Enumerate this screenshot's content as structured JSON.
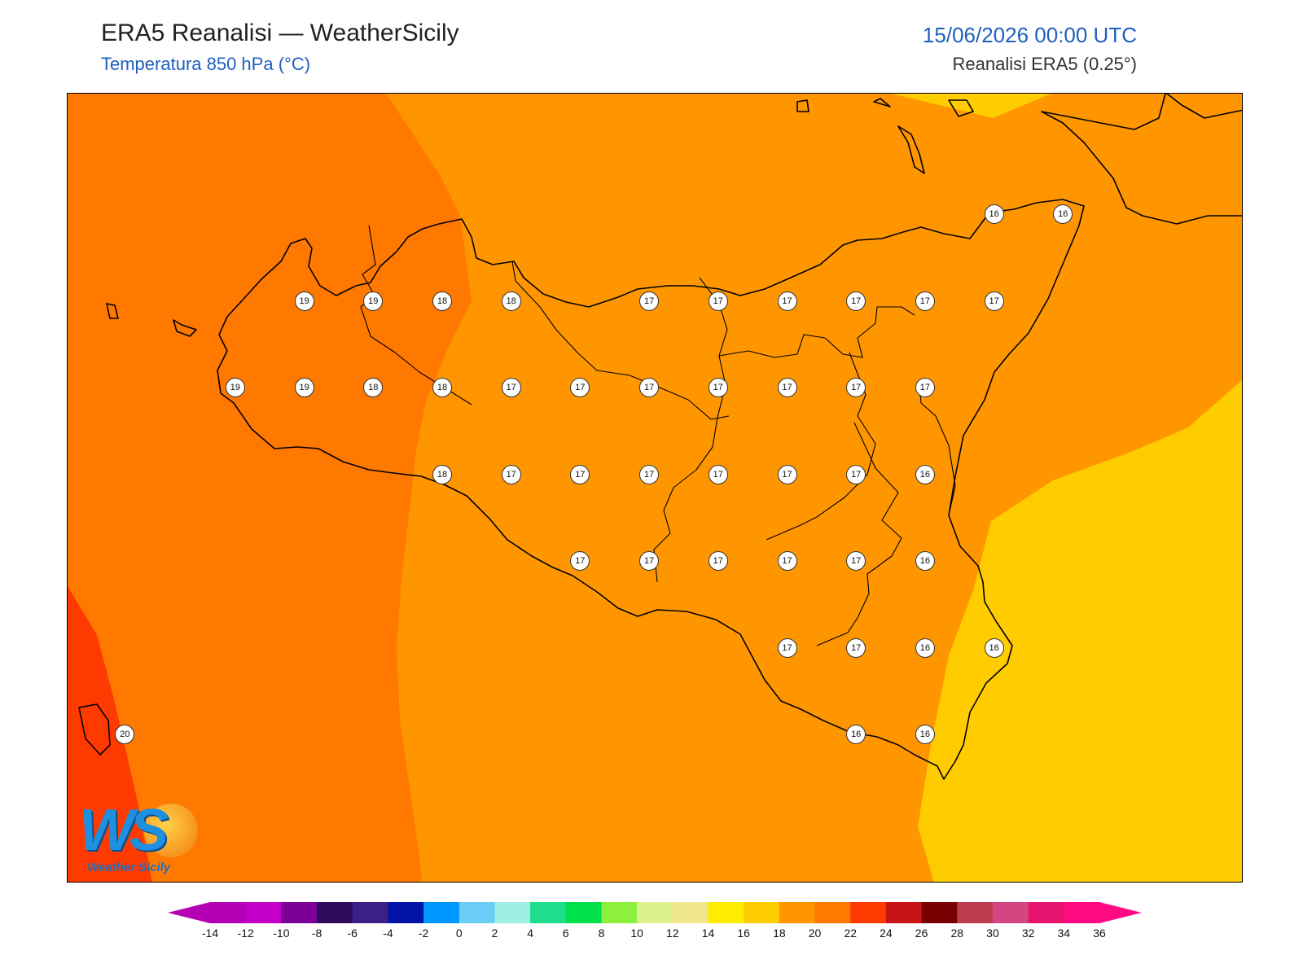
{
  "header": {
    "title": "ERA5 Reanalisi — WeatherSicily",
    "subtitle": "Temperatura 850 hPa (°C)",
    "datetime": "15/06/2026 00:00 UTC",
    "source": "Reanalisi ERA5 (0.25°)"
  },
  "map": {
    "variable": "Temperatura 850 hPa",
    "field_colors": {
      "t20_22": "#ff3a00",
      "t18_20": "#ff7800",
      "t16_18": "#ff9600",
      "t14_16": "#ffcc00"
    },
    "coast_color": "#000000",
    "points": [
      {
        "value": "16",
        "col": 13,
        "row": 1
      },
      {
        "value": "16",
        "col": 14,
        "row": 1
      },
      {
        "value": "19",
        "col": 3,
        "row": 2
      },
      {
        "value": "19",
        "col": 4,
        "row": 2
      },
      {
        "value": "18",
        "col": 5,
        "row": 2
      },
      {
        "value": "18",
        "col": 6,
        "row": 2
      },
      {
        "value": "17",
        "col": 8,
        "row": 2
      },
      {
        "value": "17",
        "col": 9,
        "row": 2
      },
      {
        "value": "17",
        "col": 10,
        "row": 2
      },
      {
        "value": "17",
        "col": 11,
        "row": 2
      },
      {
        "value": "17",
        "col": 12,
        "row": 2
      },
      {
        "value": "17",
        "col": 13,
        "row": 2
      },
      {
        "value": "19",
        "col": 2,
        "row": 3
      },
      {
        "value": "19",
        "col": 3,
        "row": 3
      },
      {
        "value": "18",
        "col": 4,
        "row": 3
      },
      {
        "value": "18",
        "col": 5,
        "row": 3
      },
      {
        "value": "17",
        "col": 6,
        "row": 3
      },
      {
        "value": "17",
        "col": 7,
        "row": 3
      },
      {
        "value": "17",
        "col": 8,
        "row": 3
      },
      {
        "value": "17",
        "col": 9,
        "row": 3
      },
      {
        "value": "17",
        "col": 10,
        "row": 3
      },
      {
        "value": "17",
        "col": 11,
        "row": 3
      },
      {
        "value": "17",
        "col": 12,
        "row": 3
      },
      {
        "value": "18",
        "col": 5,
        "row": 4
      },
      {
        "value": "17",
        "col": 6,
        "row": 4
      },
      {
        "value": "17",
        "col": 7,
        "row": 4
      },
      {
        "value": "17",
        "col": 8,
        "row": 4
      },
      {
        "value": "17",
        "col": 9,
        "row": 4
      },
      {
        "value": "17",
        "col": 10,
        "row": 4
      },
      {
        "value": "17",
        "col": 11,
        "row": 4
      },
      {
        "value": "16",
        "col": 12,
        "row": 4
      },
      {
        "value": "17",
        "col": 7,
        "row": 5
      },
      {
        "value": "17",
        "col": 8,
        "row": 5
      },
      {
        "value": "17",
        "col": 9,
        "row": 5
      },
      {
        "value": "17",
        "col": 10,
        "row": 5
      },
      {
        "value": "17",
        "col": 11,
        "row": 5
      },
      {
        "value": "16",
        "col": 12,
        "row": 5
      },
      {
        "value": "17",
        "col": 10,
        "row": 6
      },
      {
        "value": "17",
        "col": 11,
        "row": 6
      },
      {
        "value": "16",
        "col": 12,
        "row": 6
      },
      {
        "value": "16",
        "col": 13,
        "row": 6
      },
      {
        "value": "20",
        "col": 0.4,
        "row": 7
      },
      {
        "value": "16",
        "col": 11,
        "row": 7
      },
      {
        "value": "16",
        "col": 12,
        "row": 7
      }
    ]
  },
  "logo": {
    "name": "Weather Sicily"
  },
  "colorbar": {
    "ticks": [
      "-14",
      "-12",
      "-10",
      "-8",
      "-6",
      "-4",
      "-2",
      "0",
      "2",
      "4",
      "6",
      "8",
      "10",
      "12",
      "14",
      "16",
      "18",
      "20",
      "22",
      "24",
      "26",
      "28",
      "30",
      "32",
      "34",
      "36"
    ],
    "colors": [
      "#b400b4",
      "#c400c8",
      "#7a0096",
      "#2e0a5a",
      "#3c2088",
      "#0014a8",
      "#0096ff",
      "#6ccdf7",
      "#9ef0e6",
      "#1ede8c",
      "#00e04c",
      "#8cf03c",
      "#dcf08c",
      "#f0e68c",
      "#ffec00",
      "#ffcc00",
      "#ff9600",
      "#ff7800",
      "#ff3a00",
      "#c81414",
      "#780000",
      "#be3c50",
      "#d24682",
      "#e6146e",
      "#ff0a82"
    ]
  }
}
